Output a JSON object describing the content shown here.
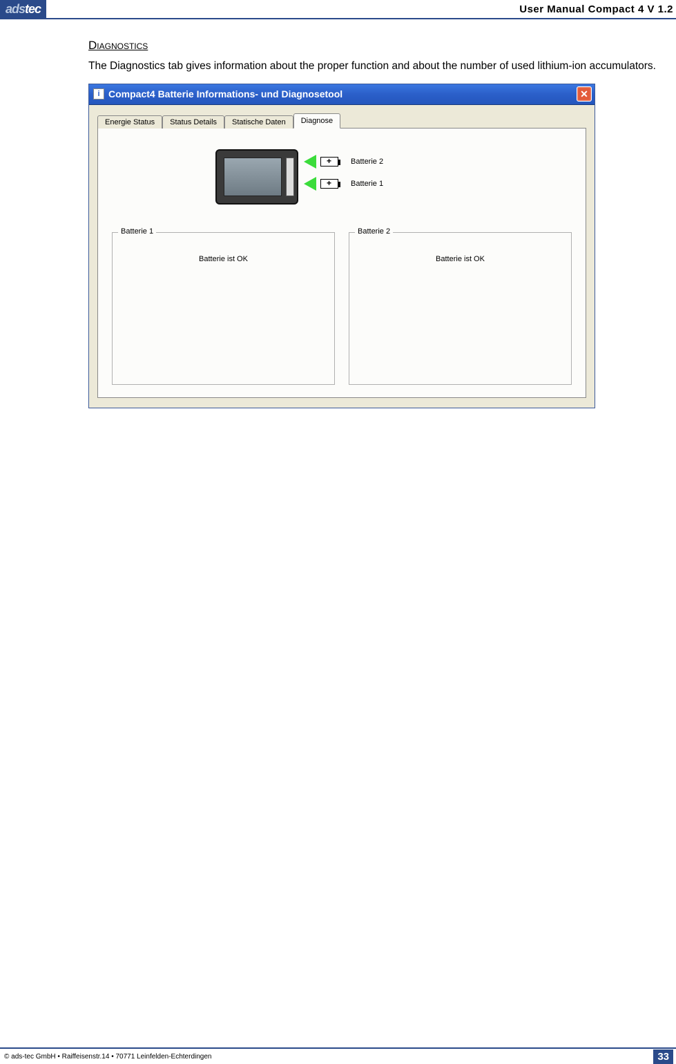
{
  "header": {
    "logo_ads": "ads",
    "logo_tec": "tec",
    "title": "User Manual Compact 4 V 1.2"
  },
  "section": {
    "heading": "Diagnostics",
    "body": "The Diagnostics tab gives information about the proper function and about the number of used lithium-ion accumulators."
  },
  "window": {
    "title": "Compact4 Batterie Informations- und Diagnosetool",
    "titlebar_icon": "i",
    "close_label": "✕",
    "tabs": [
      "Energie Status",
      "Status Details",
      "Statische Daten",
      "Diagnose"
    ],
    "active_tab_index": 3,
    "battery_labels": {
      "b1": "Batterie 1",
      "b2": "Batterie 2"
    },
    "group1": {
      "legend": "Batterie 1",
      "status": "Batterie ist OK"
    },
    "group2": {
      "legend": "Batterie 2",
      "status": "Batterie ist OK"
    },
    "colors": {
      "titlebar_gradient_top": "#3b77e0",
      "titlebar_gradient_bottom": "#2456bd",
      "window_bg": "#ece9d8",
      "tabcontent_bg": "#fcfcfa",
      "arrow_green": "#3bdc3b",
      "close_bg": "#e35b3a",
      "brand_blue": "#2a4a8a"
    }
  },
  "footer": {
    "copyright": "© ads-tec GmbH • Raiffeisenstr.14 • 70771 Leinfelden-Echterdingen",
    "page": "33"
  }
}
